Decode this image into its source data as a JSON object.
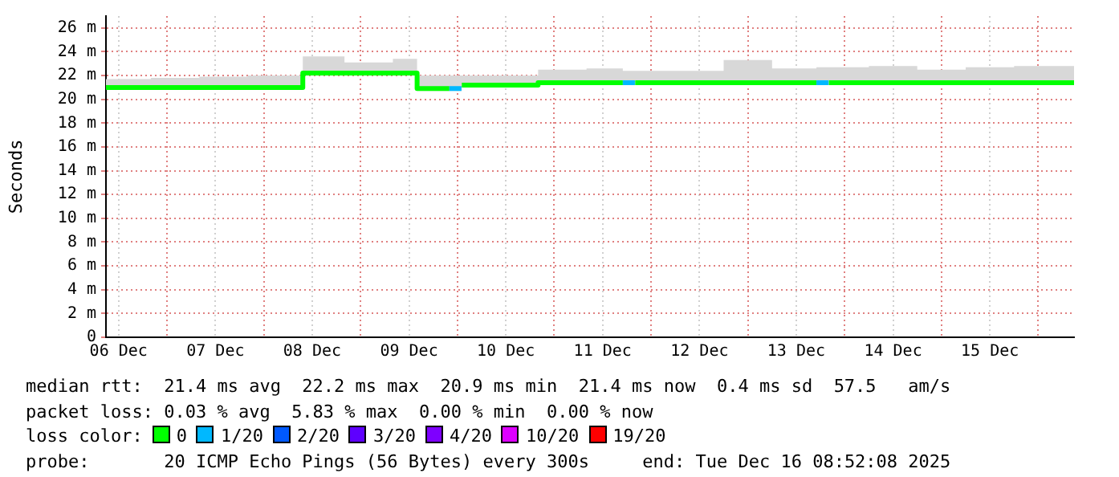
{
  "chart_data": {
    "type": "step",
    "ylabel": "Seconds",
    "legend": "bottom",
    "legend_title": "loss color:",
    "grid": true,
    "x": [
      "2025-12-06T08:52",
      "2025-12-06T20:00",
      "2025-12-07T08:00",
      "2025-12-07T20:00",
      "2025-12-08T09:40",
      "2025-12-08T20:00",
      "2025-12-09T08:00",
      "2025-12-09T14:00",
      "2025-12-09T22:00",
      "2025-12-10T01:00",
      "2025-12-10T01:05",
      "2025-12-10T12:00",
      "2025-12-10T20:00",
      "2025-12-11T08:00",
      "2025-12-11T17:00",
      "2025-12-11T20:00",
      "2025-12-11T20:05",
      "2025-12-12T06:00",
      "2025-12-12T18:00",
      "2025-12-13T06:00",
      "2025-12-13T17:00",
      "2025-12-13T20:00",
      "2025-12-13T20:05",
      "2025-12-14T06:00",
      "2025-12-14T18:00",
      "2025-12-15T06:00",
      "2025-12-15T18:00",
      "2025-12-16T08:52"
    ],
    "xlim": [
      "2025-12-06T08:52",
      "2025-12-16T08:52"
    ],
    "xticks": [
      {
        "value": "2025-12-06T12:00",
        "label": "06 Dec"
      },
      {
        "value": "2025-12-07T00:00",
        "label": null
      },
      {
        "value": "2025-12-07T12:00",
        "label": "07 Dec"
      },
      {
        "value": "2025-12-08T00:00",
        "label": null
      },
      {
        "value": "2025-12-08T12:00",
        "label": "08 Dec"
      },
      {
        "value": "2025-12-09T00:00",
        "label": null
      },
      {
        "value": "2025-12-09T12:00",
        "label": "09 Dec"
      },
      {
        "value": "2025-12-10T00:00",
        "label": null
      },
      {
        "value": "2025-12-10T12:00",
        "label": "10 Dec"
      },
      {
        "value": "2025-12-11T00:00",
        "label": null
      },
      {
        "value": "2025-12-11T12:00",
        "label": "11 Dec"
      },
      {
        "value": "2025-12-12T00:00",
        "label": null
      },
      {
        "value": "2025-12-12T12:00",
        "label": "12 Dec"
      },
      {
        "value": "2025-12-13T00:00",
        "label": null
      },
      {
        "value": "2025-12-13T12:00",
        "label": "13 Dec"
      },
      {
        "value": "2025-12-14T00:00",
        "label": null
      },
      {
        "value": "2025-12-14T12:00",
        "label": "14 Dec"
      },
      {
        "value": "2025-12-15T00:00",
        "label": null
      },
      {
        "value": "2025-12-15T12:00",
        "label": "15 Dec"
      },
      {
        "value": "2025-12-16T00:00",
        "label": null
      }
    ],
    "ylim": [
      0,
      27
    ],
    "yticks": [
      0,
      {
        "value": 2,
        "label": "2 m"
      },
      {
        "value": 4,
        "label": "4 m"
      },
      {
        "value": 6,
        "label": "6 m"
      },
      {
        "value": 8,
        "label": "8 m"
      },
      {
        "value": 10,
        "label": "10 m"
      },
      {
        "value": 12,
        "label": "12 m"
      },
      {
        "value": 14,
        "label": "14 m"
      },
      {
        "value": 16,
        "label": "16 m"
      },
      {
        "value": 18,
        "label": "18 m"
      },
      {
        "value": 20,
        "label": "20 m"
      },
      {
        "value": 22,
        "label": "22 m"
      },
      {
        "value": 24,
        "label": "24 m"
      },
      {
        "value": 26,
        "label": "26 m"
      }
    ],
    "series": [
      {
        "name": "0",
        "color": "#00ff00",
        "values": [
          21.0,
          21.0,
          21.0,
          21.0,
          22.2,
          22.2,
          22.2,
          20.9,
          20.9,
          null,
          21.2,
          21.2,
          21.4,
          21.4,
          21.4,
          null,
          21.4,
          21.4,
          21.4,
          21.4,
          21.4,
          null,
          21.4,
          21.4,
          21.4,
          21.4,
          21.4,
          21.4
        ],
        "lower": [
          20.8,
          20.8,
          20.8,
          20.8,
          22.0,
          22.0,
          22.0,
          20.7,
          20.7,
          20.7,
          21.0,
          21.0,
          21.2,
          21.2,
          21.2,
          21.2,
          21.2,
          21.2,
          21.2,
          21.2,
          21.2,
          21.2,
          21.2,
          21.2,
          21.2,
          21.2,
          21.2,
          21.2
        ],
        "upper": [
          21.7,
          21.8,
          21.9,
          22.0,
          23.6,
          23.1,
          23.4,
          22.0,
          22.0,
          22.0,
          22.0,
          22.0,
          22.5,
          22.6,
          22.4,
          22.4,
          22.4,
          22.4,
          23.3,
          22.6,
          22.7,
          22.7,
          22.7,
          22.8,
          22.5,
          22.7,
          22.8,
          22.6
        ]
      },
      {
        "name": "1/20",
        "color": "#00b8ff",
        "values": [
          null,
          null,
          null,
          null,
          null,
          null,
          null,
          null,
          20.9,
          20.9,
          null,
          null,
          null,
          null,
          21.4,
          21.4,
          null,
          null,
          null,
          null,
          21.4,
          21.4,
          null,
          null,
          null,
          null,
          null,
          null
        ]
      },
      {
        "name": "2/20",
        "color": "#0059ff",
        "values": [
          null,
          null,
          null,
          null,
          null,
          null,
          null,
          null,
          null,
          null,
          null,
          null,
          null,
          null,
          null,
          null,
          null,
          null,
          null,
          null,
          null,
          null,
          null,
          null,
          null,
          null,
          null,
          null
        ]
      },
      {
        "name": "3/20",
        "color": "#5e00ff",
        "values": [
          null,
          null,
          null,
          null,
          null,
          null,
          null,
          null,
          null,
          null,
          null,
          null,
          null,
          null,
          null,
          null,
          null,
          null,
          null,
          null,
          null,
          null,
          null,
          null,
          null,
          null,
          null,
          null
        ]
      },
      {
        "name": "4/20",
        "color": "#7e00ff",
        "values": [
          null,
          null,
          null,
          null,
          null,
          null,
          null,
          null,
          null,
          null,
          null,
          null,
          null,
          null,
          null,
          null,
          null,
          null,
          null,
          null,
          null,
          null,
          null,
          null,
          null,
          null,
          null,
          null
        ]
      },
      {
        "name": "10/20",
        "color": "#dd00ff",
        "values": [
          null,
          null,
          null,
          null,
          null,
          null,
          null,
          null,
          null,
          null,
          null,
          null,
          null,
          null,
          null,
          null,
          null,
          null,
          null,
          null,
          null,
          null,
          null,
          null,
          null,
          null,
          null,
          null
        ]
      },
      {
        "name": "19/20",
        "color": "#ff0000",
        "values": [
          null,
          null,
          null,
          null,
          null,
          null,
          null,
          null,
          null,
          null,
          null,
          null,
          null,
          null,
          null,
          null,
          null,
          null,
          null,
          null,
          null,
          null,
          null,
          null,
          null,
          null,
          null,
          null
        ]
      }
    ],
    "annotations": [
      "median rtt:  21.4 ms avg  22.2 ms max  20.9 ms min  21.4 ms now  0.4 ms sd  57.5   am/s",
      "packet loss: 0.03 % avg  5.83 % max  0.00 % min  0.00 % now",
      "probe:       20 ICMP Echo Pings (56 Bytes) every 300s",
      "end: Tue Dec 16 08:52:08 2025"
    ]
  }
}
